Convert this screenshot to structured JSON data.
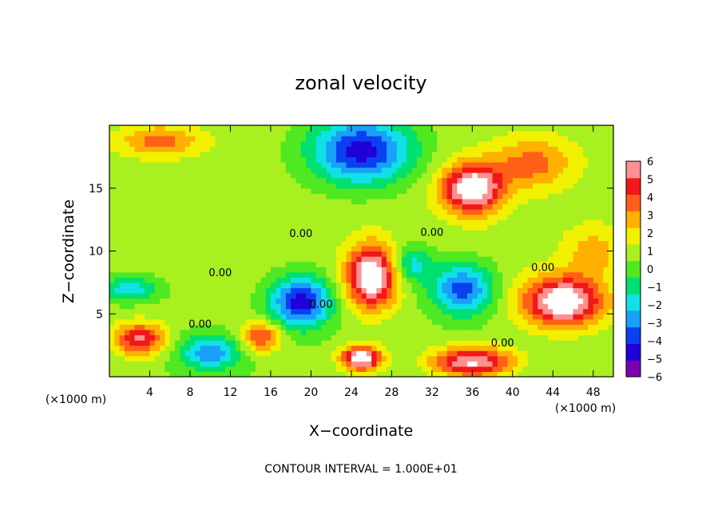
{
  "chart_data": {
    "type": "heatmap",
    "title": "zonal velocity",
    "xlabel": "X−coordinate",
    "ylabel": "Z−coordinate",
    "x_unit": "(×1000 m)",
    "xlim": [
      0,
      50
    ],
    "ylim": [
      0,
      20
    ],
    "x_ticks": [
      4,
      8,
      12,
      16,
      20,
      24,
      28,
      32,
      36,
      40,
      44,
      48
    ],
    "y_ticks": [
      5,
      10,
      15
    ],
    "colorbar": {
      "min": -6,
      "max": 6,
      "ticks": [
        6,
        5,
        4,
        3,
        2,
        1,
        0,
        -1,
        -2,
        -3,
        -4,
        -5,
        -6
      ],
      "tick_labels": [
        "6",
        "5",
        "4",
        "3",
        "2",
        "1",
        "0",
        "−1",
        "−2",
        "−3",
        "−4",
        "−5",
        "−6"
      ],
      "colors": [
        "#7a00b0",
        "#2000d8",
        "#0a40f0",
        "#1aa0f8",
        "#10e0e8",
        "#00e070",
        "#50e820",
        "#a8f020",
        "#f0f000",
        "#ffb000",
        "#ff6018",
        "#f01818",
        "#ff9090"
      ]
    },
    "contour_labels": [
      {
        "x": 11,
        "y": 8.0,
        "text": "0.00"
      },
      {
        "x": 19,
        "y": 11.1,
        "text": "0.00"
      },
      {
        "x": 21,
        "y": 5.5,
        "text": "0.00"
      },
      {
        "x": 32,
        "y": 11.2,
        "text": "0.00"
      },
      {
        "x": 9,
        "y": 3.9,
        "text": "0.00"
      },
      {
        "x": 39,
        "y": 2.4,
        "text": "0.00"
      },
      {
        "x": 43,
        "y": 8.4,
        "text": "0.00"
      }
    ],
    "footer": "CONTOUR INTERVAL = 1.000E+01",
    "field_blobs": [
      {
        "x": 25,
        "y": 18,
        "sx": 5,
        "sy": 2.6,
        "v": -6
      },
      {
        "x": 36,
        "y": 15,
        "sx": 3,
        "sy": 2,
        "v": 7
      },
      {
        "x": 19,
        "y": 6,
        "sx": 3,
        "sy": 2,
        "v": -6
      },
      {
        "x": 35,
        "y": 7,
        "sx": 3,
        "sy": 2,
        "v": -5
      },
      {
        "x": 26,
        "y": 8,
        "sx": 2.5,
        "sy": 2.5,
        "v": 7
      },
      {
        "x": 45,
        "y": 6,
        "sx": 4,
        "sy": 2,
        "v": 7
      },
      {
        "x": 3,
        "y": 3,
        "sx": 2.5,
        "sy": 1.3,
        "v": 5
      },
      {
        "x": 10,
        "y": 2,
        "sx": 3,
        "sy": 1.4,
        "v": -4
      },
      {
        "x": 36,
        "y": 1.2,
        "sx": 4,
        "sy": 1.2,
        "v": 6
      },
      {
        "x": 25,
        "y": 1.5,
        "sx": 2,
        "sy": 1,
        "v": 7
      },
      {
        "x": 5,
        "y": 18.8,
        "sx": 4,
        "sy": 1.2,
        "v": 3
      },
      {
        "x": 42,
        "y": 17,
        "sx": 4,
        "sy": 2,
        "v": 3
      },
      {
        "x": 48,
        "y": 10,
        "sx": 3,
        "sy": 2,
        "v": 2
      },
      {
        "x": 2,
        "y": 7,
        "sx": 3,
        "sy": 1,
        "v": -3
      },
      {
        "x": 30,
        "y": 9,
        "sx": 2,
        "sy": 1.5,
        "v": -3
      },
      {
        "x": 15,
        "y": 3.2,
        "sx": 2,
        "sy": 1.2,
        "v": 4
      }
    ]
  }
}
